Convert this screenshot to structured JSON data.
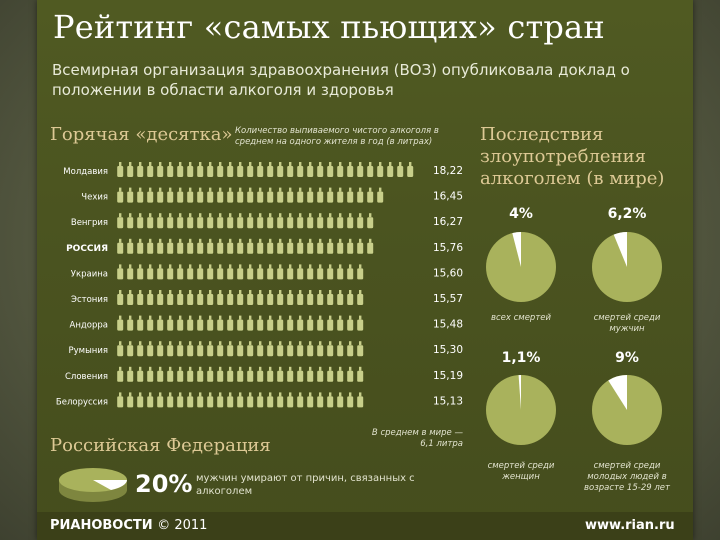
{
  "slide": {
    "title": "Рейтинг «самых пьющих» стран",
    "subtitle": "Всемирная организация здравоохранения (ВОЗ) опубликовала доклад о положении в области алкоголя и здоровья"
  },
  "ranking": {
    "heading": "Горячая «десятка»",
    "note": "Количество выпиваемого чистого алкоголя в среднем на одного жителя в год (в литрах)",
    "world_note": "В среднем в мире — 6,1 литра"
  },
  "consequences": {
    "heading": "Последствия злоупотребления алкоголем (в мире)"
  },
  "russia": {
    "heading": "Российская Федерация",
    "percent": "20%",
    "text": "мужчин умирают от причин, связанных с алкоголем"
  },
  "footer": {
    "brand": "РИАНОВОСТИ",
    "copyright": "© 2011",
    "site": "www.rian.ru"
  },
  "colors": {
    "bottle": "#c8cf8a",
    "value_text": "#ffffff",
    "pie_fill": "#a9b25c",
    "pie_slice": "#ffffff"
  },
  "chart_data": [
    {
      "type": "bar",
      "title": "Горячая «десятка»",
      "ylabel": "Количество выпиваемого чистого алкоголя в среднем на одного жителя в год (в литрах)",
      "categories": [
        "Молдавия",
        "Чехия",
        "Венгрия",
        "РОССИЯ",
        "Украина",
        "Эстония",
        "Андорра",
        "Румыния",
        "Словения",
        "Белоруссия"
      ],
      "values": [
        18.22,
        16.45,
        16.27,
        15.76,
        15.6,
        15.57,
        15.48,
        15.3,
        15.19,
        15.13
      ],
      "value_labels": [
        "18,22",
        "16,45",
        "16,27",
        "15,76",
        "15,60",
        "15,57",
        "15,48",
        "15,30",
        "15,19",
        "15,13"
      ],
      "xlim": [
        0,
        18.22
      ]
    },
    {
      "type": "pie",
      "title": "Последствия злоупотребления алкоголем (в мире)",
      "slices": [
        {
          "value": 4.0,
          "label": "4%",
          "caption": "всех смертей"
        },
        {
          "value": 6.2,
          "label": "6,2%",
          "caption": "смертей среди мужчин"
        },
        {
          "value": 1.1,
          "label": "1,1%",
          "caption": "смертей среди женщин"
        },
        {
          "value": 9.0,
          "label": "9%",
          "caption": "смертей среди молодых людей в возрасте 15-29 лет"
        }
      ]
    },
    {
      "type": "pie",
      "title": "Российская Федерация",
      "slices": [
        {
          "value": 20,
          "label": "20%",
          "caption": "мужчин умирают от причин, связанных с алкоголем"
        }
      ]
    }
  ]
}
